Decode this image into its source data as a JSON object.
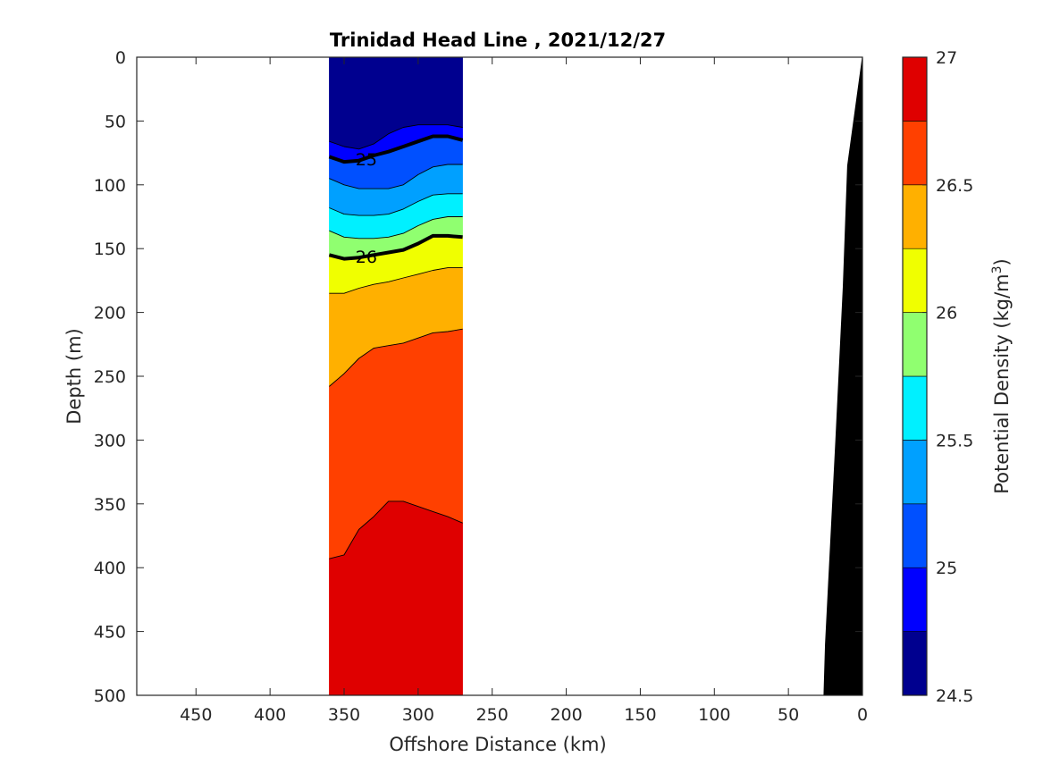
{
  "chart_data": {
    "type": "heatmap",
    "subtype": "filled-contour-section",
    "title": "Trinidad Head Line , 2021/12/27",
    "xlabel": "Offshore Distance (km)",
    "ylabel": "Depth (m)",
    "colorbar_label": "Potential Density (kg/m",
    "colorbar_label_sup": "3",
    "colorbar_label_close": ")",
    "xlim": [
      490,
      0
    ],
    "x_reversed": true,
    "ylim": [
      0,
      500
    ],
    "y_reversed": true,
    "x_ticks": [
      "450",
      "400",
      "350",
      "300",
      "250",
      "200",
      "150",
      "100",
      "50",
      "0"
    ],
    "x_tick_values": [
      450,
      400,
      350,
      300,
      250,
      200,
      150,
      100,
      50,
      0
    ],
    "y_ticks": [
      "0",
      "50",
      "100",
      "150",
      "200",
      "250",
      "300",
      "350",
      "400",
      "450",
      "500"
    ],
    "y_tick_values": [
      0,
      50,
      100,
      150,
      200,
      250,
      300,
      350,
      400,
      450,
      500
    ],
    "colorbar_ticks": [
      "24.5",
      "25",
      "25.5",
      "26",
      "26.5",
      "27"
    ],
    "colorbar_tick_values": [
      24.5,
      25,
      25.5,
      26,
      26.5,
      27
    ],
    "colorbar_range": [
      24.5,
      27
    ],
    "levels": [
      24.5,
      24.75,
      25.0,
      25.25,
      25.5,
      25.75,
      26.0,
      26.25,
      26.5,
      26.75,
      27.0
    ],
    "level_colors": [
      "#00008f",
      "#0000ff",
      "#0050ff",
      "#00a0ff",
      "#00f0ff",
      "#90ff70",
      "#f0ff00",
      "#ffb000",
      "#ff4000",
      "#df0000"
    ],
    "data_x_range": [
      360,
      270
    ],
    "contour_x": [
      360,
      350,
      340,
      330,
      320,
      310,
      300,
      290,
      280,
      270
    ],
    "isopycnal_depths": [
      {
        "level": 24.75,
        "depths": [
          66,
          70,
          72,
          68,
          60,
          55,
          53,
          53,
          53,
          55
        ]
      },
      {
        "level": 25.0,
        "depths": [
          78,
          82,
          81,
          77,
          74,
          70,
          66,
          62,
          62,
          65
        ]
      },
      {
        "level": 25.25,
        "depths": [
          95,
          100,
          103,
          103,
          103,
          100,
          92,
          86,
          84,
          84
        ]
      },
      {
        "level": 25.5,
        "depths": [
          118,
          123,
          124,
          124,
          123,
          119,
          113,
          108,
          107,
          107
        ]
      },
      {
        "level": 25.75,
        "depths": [
          136,
          141,
          142,
          142,
          141,
          138,
          132,
          127,
          125,
          125
        ]
      },
      {
        "level": 26.0,
        "depths": [
          155,
          158,
          157,
          155,
          153,
          151,
          146,
          140,
          140,
          141
        ]
      },
      {
        "level": 26.25,
        "depths": [
          185,
          185,
          181,
          178,
          176,
          173,
          170,
          167,
          165,
          165
        ]
      },
      {
        "level": 26.5,
        "depths": [
          258,
          248,
          236,
          228,
          226,
          224,
          220,
          216,
          215,
          213
        ]
      },
      {
        "level": 26.75,
        "depths": [
          393,
          390,
          370,
          360,
          348,
          348,
          352,
          356,
          360,
          365
        ]
      }
    ],
    "contour_labels": [
      {
        "text": "25",
        "level": 25.0,
        "x": 335,
        "depth": 80
      },
      {
        "text": "26",
        "level": 26.0,
        "x": 335,
        "depth": 156
      }
    ],
    "bottom_topography": {
      "color": "#000000",
      "x": [
        0,
        10,
        13,
        18,
        25,
        26
      ],
      "depth": [
        0,
        85,
        180,
        300,
        460,
        500
      ]
    }
  }
}
